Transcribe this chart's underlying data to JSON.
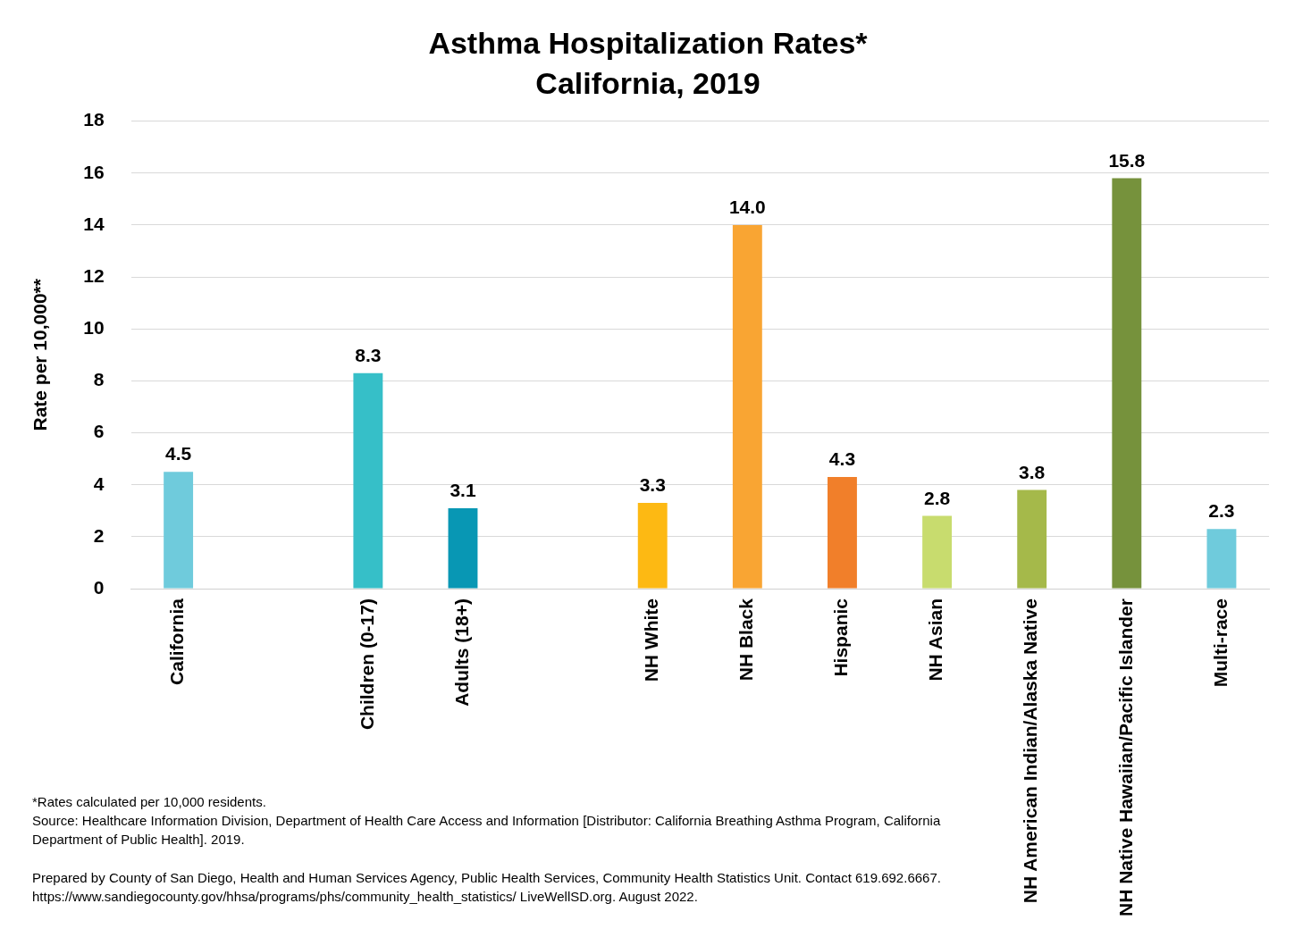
{
  "chart_data": {
    "type": "bar",
    "title": "Asthma Hospitalization Rates*",
    "subtitle": "California, 2019",
    "ylabel": "Rate per 10,000**",
    "categories": [
      "California",
      null,
      "Children (0-17)",
      "Adults (18+)",
      null,
      "NH White",
      "NH Black",
      "Hispanic",
      "NH Asian",
      "NH American Indian/Alaska Native",
      "NH Native Hawaiian/Pacific Islander",
      "Multi-race"
    ],
    "values": [
      4.5,
      null,
      8.3,
      3.1,
      null,
      3.3,
      14.0,
      4.3,
      2.8,
      3.8,
      15.8,
      2.3
    ],
    "colors": [
      "#6fcbdc",
      "#6fcbdc",
      "#36bfc8",
      "#0897b4",
      "#0897b4",
      "#fdb913",
      "#f9a533",
      "#f17f2a",
      "#c8dc6e",
      "#a5b94a",
      "#76923c",
      "#6fcbdc"
    ],
    "value_labels": [
      "4.5",
      null,
      "8.3",
      "3.1",
      null,
      "3.3",
      "14.0",
      "4.3",
      "2.8",
      "3.8",
      "15.8",
      "2.3"
    ],
    "ylim": [
      0,
      18
    ],
    "yticks": [
      0,
      2,
      4,
      6,
      8,
      10,
      12,
      14,
      16,
      18
    ],
    "grid": "y",
    "legend": false,
    "annotations": [
      "*Rates calculated per 10,000 residents.",
      "Source: Healthcare Information Division, Department of Health Care Access and Information [Distributor: California Breathing Asthma Program, California Department of Public Health]. 2019.",
      "Prepared by County of San Diego, Health and Human Services Agency, Public Health Services, Community Health Statistics Unit. Contact 619.692.6667. https://www.sandiegocounty.gov/hhsa/programs/phs/community_health_statistics/ LiveWellSD.org. August 2022."
    ]
  }
}
